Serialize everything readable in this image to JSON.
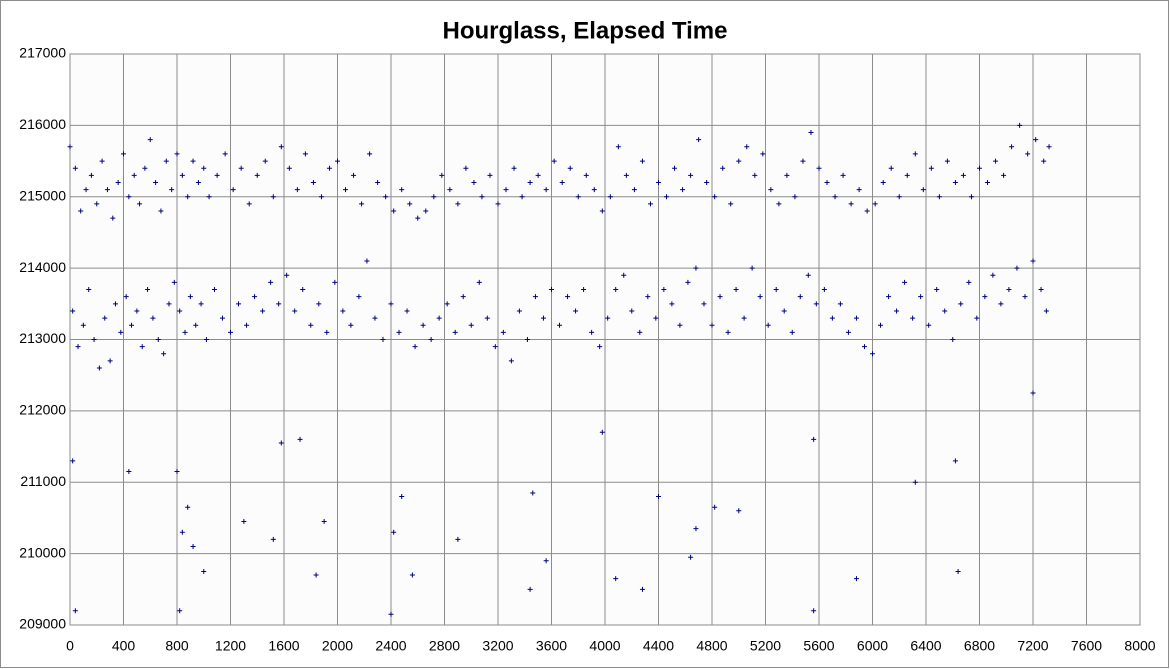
{
  "chart_data": {
    "type": "scatter",
    "title": "Hourglass,  Elapsed Time",
    "x": [
      0,
      40,
      80,
      120,
      160,
      200,
      240,
      280,
      320,
      360,
      400,
      440,
      480,
      520,
      560,
      600,
      640,
      680,
      720,
      760,
      800,
      840,
      880,
      920,
      960,
      1000,
      1040,
      1100,
      1160,
      1220,
      1280,
      1340,
      1400,
      1460,
      1520,
      1580,
      1640,
      1700,
      1760,
      1820,
      1880,
      1940,
      2000,
      2060,
      2120,
      2180,
      2240,
      2300,
      2360,
      2420,
      2480,
      2540,
      2600,
      2660,
      2720,
      2780,
      2840,
      2900,
      2960,
      3020,
      3080,
      3140,
      3200,
      3260,
      3320,
      3380,
      3440,
      3500,
      3560,
      3620,
      3680,
      3740,
      3800,
      3860,
      3920,
      3980,
      4040,
      4100,
      4160,
      4220,
      4280,
      4340,
      4400,
      4460,
      4520,
      4580,
      4640,
      4700,
      4760,
      4820,
      4880,
      4940,
      5000,
      5060,
      5120,
      5180,
      5240,
      5300,
      5360,
      5420,
      5480,
      5540,
      5600,
      5660,
      5720,
      5780,
      5840,
      5900,
      5960,
      6020,
      6080,
      6140,
      6200,
      6260,
      6320,
      6380,
      6440,
      6500,
      6560,
      6620,
      6680,
      6740,
      6800,
      6860,
      6920,
      6980,
      7040,
      7100,
      7160,
      7220,
      7280,
      7320,
      20,
      60,
      100,
      140,
      180,
      220,
      260,
      300,
      340,
      380,
      420,
      460,
      500,
      540,
      580,
      620,
      660,
      700,
      740,
      780,
      820,
      860,
      900,
      940,
      980,
      1020,
      1080,
      1140,
      1200,
      1260,
      1320,
      1380,
      1440,
      1500,
      1560,
      1620,
      1680,
      1740,
      1800,
      1860,
      1920,
      1980,
      2040,
      2100,
      2160,
      2220,
      2280,
      2340,
      2400,
      2460,
      2520,
      2580,
      2640,
      2700,
      2760,
      2820,
      2880,
      2940,
      3000,
      3060,
      3120,
      3180,
      3240,
      3300,
      3360,
      3420,
      3480,
      3540,
      3600,
      3660,
      3720,
      3780,
      3840,
      3900,
      3960,
      4020,
      4080,
      4140,
      4200,
      4260,
      4320,
      4380,
      4440,
      4500,
      4560,
      4620,
      4680,
      4740,
      4800,
      4860,
      4920,
      4980,
      5040,
      5100,
      5160,
      5220,
      5280,
      5340,
      5400,
      5460,
      5520,
      5580,
      5640,
      5700,
      5760,
      5820,
      5880,
      5940,
      6000,
      6060,
      6120,
      6180,
      6240,
      6300,
      6360,
      6420,
      6480,
      6540,
      6600,
      6660,
      6720,
      6780,
      6840,
      6900,
      6960,
      7020,
      7080,
      7140,
      7200,
      7260,
      7300,
      20,
      40,
      440,
      800,
      820,
      840,
      880,
      920,
      1000,
      1300,
      1520,
      1580,
      1720,
      1840,
      1900,
      2400,
      2420,
      2480,
      2560,
      2900,
      3460,
      3440,
      3560,
      3980,
      4080,
      4280,
      4400,
      4640,
      4680,
      4820,
      5000,
      5560,
      5560,
      5880,
      6320,
      6640,
      6620,
      7200
    ],
    "series": [
      {
        "name": "Elapsed Time",
        "color": "#000080",
        "values": [
          215700,
          215400,
          214800,
          215100,
          215300,
          214900,
          215500,
          215100,
          214700,
          215200,
          215600,
          215000,
          215300,
          214900,
          215400,
          215800,
          215200,
          214800,
          215500,
          215100,
          215600,
          215300,
          215000,
          215500,
          215200,
          215400,
          215000,
          215300,
          215600,
          215100,
          215400,
          214900,
          215300,
          215500,
          215000,
          215700,
          215400,
          215100,
          215600,
          215200,
          215000,
          215400,
          215500,
          215100,
          215300,
          214900,
          215600,
          215200,
          215000,
          214800,
          215100,
          214900,
          214700,
          214800,
          215000,
          215300,
          215100,
          214900,
          215400,
          215200,
          215000,
          215300,
          214900,
          215100,
          215400,
          215000,
          215200,
          215300,
          215100,
          215500,
          215200,
          215400,
          215000,
          215300,
          215100,
          214800,
          215000,
          215700,
          215300,
          215100,
          215500,
          214900,
          215200,
          215000,
          215400,
          215100,
          215300,
          215800,
          215200,
          215000,
          215400,
          214900,
          215500,
          215700,
          215300,
          215600,
          215100,
          214900,
          215300,
          215000,
          215500,
          215900,
          215400,
          215200,
          215000,
          215300,
          214900,
          215100,
          214800,
          214900,
          215200,
          215400,
          215000,
          215300,
          215600,
          215100,
          215400,
          215000,
          215500,
          215200,
          215300,
          215000,
          215400,
          215200,
          215500,
          215300,
          215700,
          216000,
          215600,
          215800,
          215500,
          215700,
          213400,
          212900,
          213200,
          213700,
          213000,
          212600,
          213300,
          212700,
          213500,
          213100,
          213600,
          213200,
          213400,
          212900,
          213700,
          213300,
          213000,
          212800,
          213500,
          213800,
          213400,
          213100,
          213600,
          213200,
          213500,
          213000,
          213700,
          213300,
          213100,
          213500,
          213200,
          213600,
          213400,
          213800,
          213500,
          213900,
          213400,
          213700,
          213200,
          213500,
          213100,
          213800,
          213400,
          213200,
          213600,
          214100,
          213300,
          213000,
          213500,
          213100,
          213400,
          212900,
          213200,
          213000,
          213300,
          213500,
          213100,
          213600,
          213200,
          213800,
          213300,
          212900,
          213100,
          212700,
          213400,
          213000,
          213600,
          213300,
          213700,
          213200,
          213600,
          213400,
          213700,
          213100,
          212900,
          213300,
          213700,
          213900,
          213400,
          213100,
          213600,
          213300,
          213700,
          213500,
          213200,
          213800,
          214000,
          213500,
          213200,
          213600,
          213100,
          213700,
          213300,
          214000,
          213600,
          213200,
          213700,
          213400,
          213100,
          213600,
          213900,
          213500,
          213700,
          213300,
          213500,
          213100,
          213300,
          212900,
          212800,
          213200,
          213600,
          213400,
          213800,
          213300,
          213600,
          213200,
          213700,
          213400,
          213000,
          213500,
          213800,
          213300,
          213600,
          213900,
          213500,
          213700,
          214000,
          213600,
          214100,
          213700,
          213400,
          211300,
          209200,
          211150,
          211150,
          209200,
          210300,
          210650,
          210100,
          209750,
          210450,
          210200,
          211550,
          211600,
          209700,
          210450,
          209150,
          210300,
          210800,
          209700,
          210200,
          210850,
          209500,
          209900,
          211700,
          209650,
          209500,
          210800,
          209950,
          210350,
          210650,
          210600,
          209200,
          211600,
          209650,
          211000,
          209750,
          211300,
          212250
        ]
      }
    ],
    "xlim": [
      0,
      8000
    ],
    "ylim": [
      209000,
      217000
    ],
    "xticks": [
      0,
      400,
      800,
      1200,
      1600,
      2000,
      2400,
      2800,
      3200,
      3600,
      4000,
      4400,
      4800,
      5200,
      5600,
      6000,
      6400,
      6800,
      7200,
      7600,
      8000
    ],
    "yticks": [
      209000,
      210000,
      211000,
      212000,
      213000,
      214000,
      215000,
      216000,
      217000
    ],
    "grid": true
  }
}
